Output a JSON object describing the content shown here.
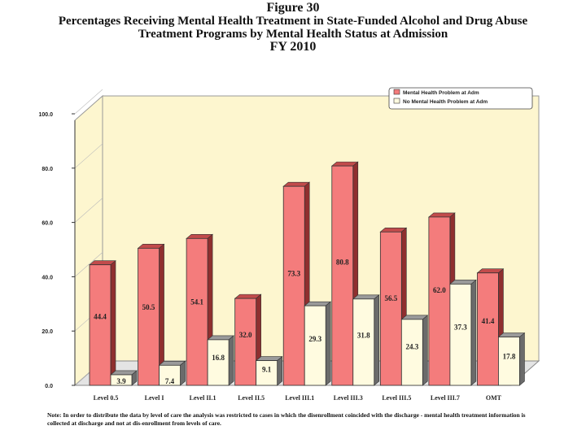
{
  "title": {
    "line1": "Figure 30",
    "line2": "Percentages Receiving Mental Health Treatment in State-Funded Alcohol and Drug Abuse",
    "line3": "Treatment Programs by Mental Health Status at Admission",
    "line4": "FY 2010"
  },
  "note": "Note: In order to distribute the data by level of care the analysis was restricted to cases in which the disenrollment coincided with the discharge - mental health treatment information is collected at discharge and not at dis-enrollment from levels of care.",
  "colors": {
    "series1": "#f47c7c",
    "series1_top": "#c24b4b",
    "series1_side": "#8f2f2f",
    "series2": "#fffbe0",
    "series2_top": "#9a9a9a",
    "series2_side": "#6b6b6b",
    "wall": "#fdf6cf",
    "floor": "#e4e4e4"
  },
  "chart_data": {
    "type": "bar",
    "categories": [
      "Level 0.5",
      "Level I",
      "Level II.1",
      "Level II.5",
      "Level III.1",
      "Level III.3",
      "Level III.5",
      "Level III.7",
      "OMT"
    ],
    "series": [
      {
        "name": "Mental Health Problem at Adm",
        "values": [
          44.4,
          50.5,
          54.1,
          32.0,
          73.3,
          80.8,
          56.5,
          62.0,
          41.4
        ]
      },
      {
        "name": "No Mental Health Problem at Adm",
        "values": [
          3.9,
          7.4,
          16.8,
          9.1,
          29.3,
          31.8,
          24.3,
          37.3,
          17.8
        ]
      }
    ],
    "value_labels": [
      [
        "44.4",
        "50.5",
        "54.1",
        "32.0",
        "73.3",
        "80.8",
        "56.5",
        "62.0",
        "41.4"
      ],
      [
        "3.9",
        "7.4",
        "16.8",
        "9.1",
        "29.3",
        "31.8",
        "24.3",
        "37.3",
        "17.8"
      ]
    ],
    "yticks": [
      "0.0",
      "20.0",
      "40.0",
      "60.0",
      "80.0",
      "100.0"
    ],
    "ylim": [
      0,
      100
    ],
    "legend_position": "top-right",
    "xlabel": "",
    "ylabel": ""
  }
}
